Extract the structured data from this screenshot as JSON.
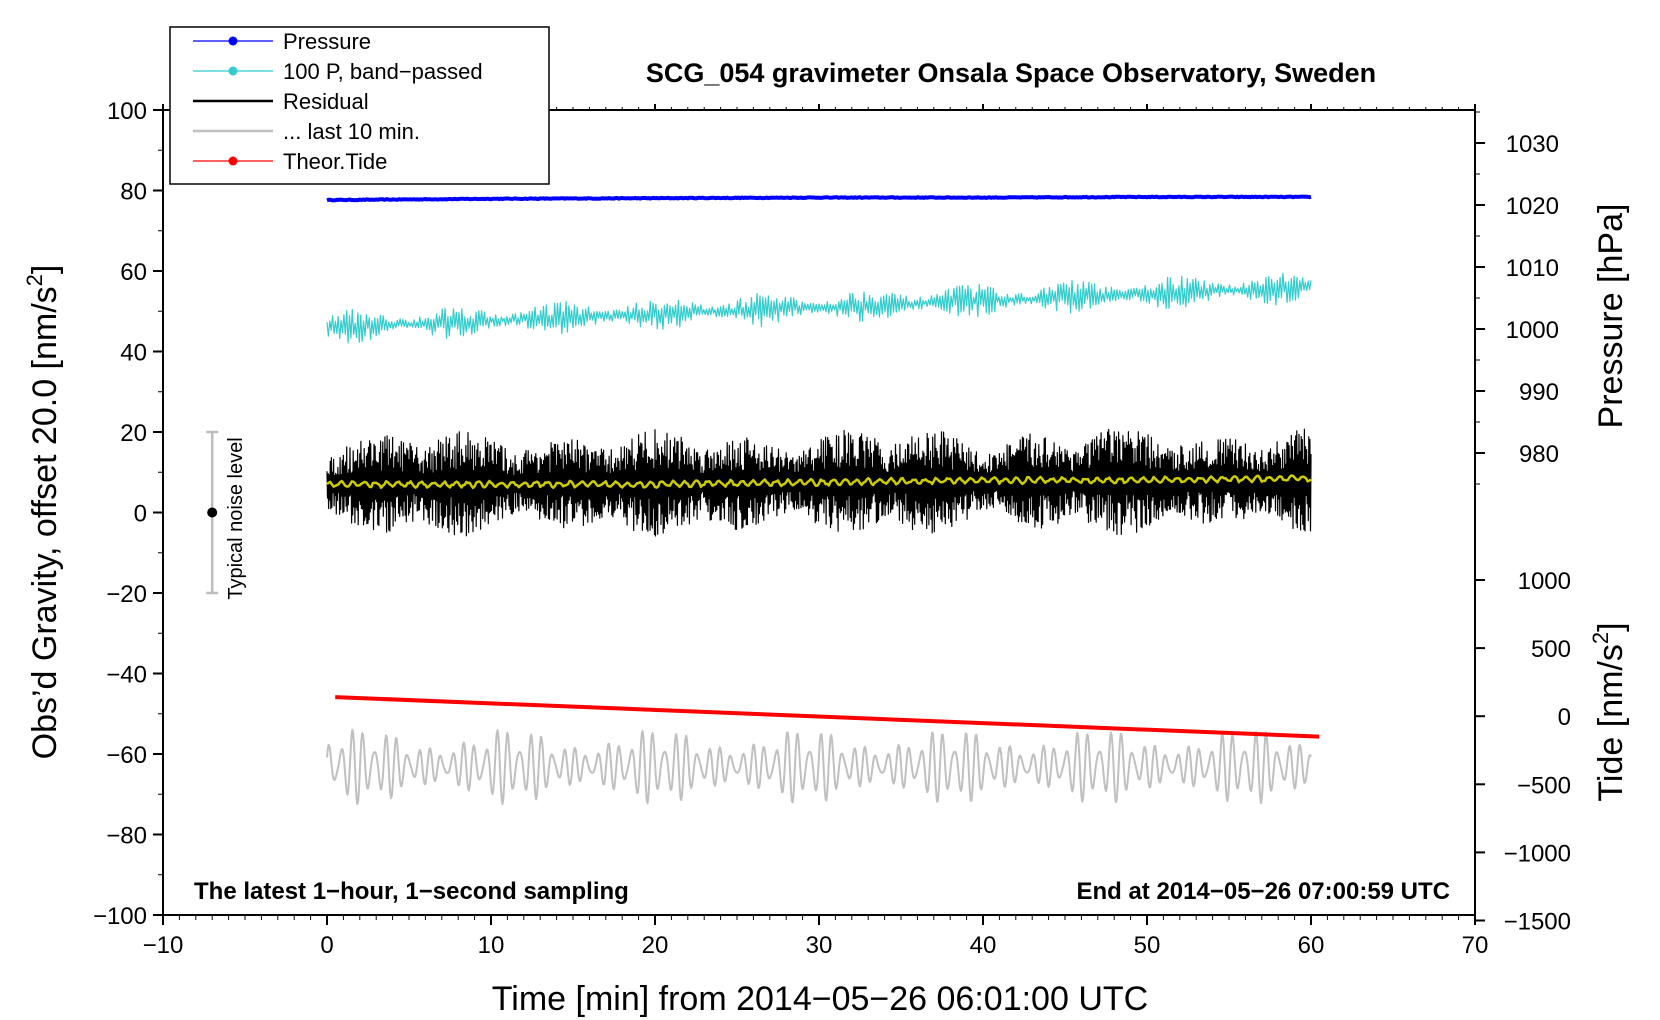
{
  "chart_data": {
    "type": "line",
    "title": "SCG_054 gravimeter Onsala Space Observatory, Sweden",
    "xlabel": "Time [min] from 2014−05−26 06:01:00 UTC",
    "ylabel_left_main": "Obs’d Gravity, offset 20.0 [nm/s",
    "ylabel_left_sup": "2",
    "ylabel_left_end": "]",
    "ylabel_right_top": "Pressure [hPa]",
    "ylabel_right_bottom_main": "Tide [nm/s",
    "ylabel_right_bottom_sup": "2",
    "ylabel_right_bottom_end": "]",
    "xlim": [
      -10,
      70
    ],
    "ylim_left": [
      -100,
      100
    ],
    "ylim_pressure": [
      970,
      1035
    ],
    "ylim_tide": [
      -1500,
      1000
    ],
    "x_ticks": [
      "−10",
      "0",
      "10",
      "20",
      "30",
      "40",
      "50",
      "60",
      "70"
    ],
    "x_tick_values": [
      -10,
      0,
      10,
      20,
      30,
      40,
      50,
      60,
      70
    ],
    "y_ticks_left": [
      "100",
      "80",
      "60",
      "40",
      "20",
      "0",
      "−20",
      "−40",
      "−60",
      "−80",
      "−100"
    ],
    "y_tick_values_left": [
      100,
      80,
      60,
      40,
      20,
      0,
      -20,
      -40,
      -60,
      -80,
      -100
    ],
    "pressure_ticks": [
      "1030",
      "1020",
      "1010",
      "1000",
      "990",
      "980"
    ],
    "pressure_tick_values": [
      1030,
      1020,
      1010,
      1000,
      990,
      980
    ],
    "tide_ticks": [
      "1000",
      "500",
      "0",
      "−500",
      "−1000",
      "−1500"
    ],
    "tide_tick_values": [
      1000,
      500,
      0,
      -500,
      -1000,
      -1500
    ],
    "legend": [
      {
        "label": "Pressure",
        "color": "#0000ff",
        "marker": "dot"
      },
      {
        "label": "100 P, band−passed",
        "color": "#33cccc",
        "marker": "dot"
      },
      {
        "label": "Residual",
        "color": "#000000",
        "marker": "line"
      },
      {
        "label": "... last 10 min.",
        "color": "#c0c0c0",
        "marker": "line"
      },
      {
        "label": "Theor.Tide",
        "color": "#ff0000",
        "marker": "dot"
      }
    ],
    "series": [
      {
        "name": "Pressure",
        "axis": "pressure",
        "color": "#0000ff",
        "x": [
          0,
          10,
          20,
          30,
          40,
          50,
          60
        ],
        "y": [
          1020.8,
          1021.0,
          1021.1,
          1021.2,
          1021.2,
          1021.3,
          1021.3
        ]
      },
      {
        "name": "100 P, band-passed",
        "axis": "left",
        "color": "#33cccc",
        "x_start": 0,
        "x_end": 60,
        "baseline": [
          46,
          56
        ],
        "amplitude": 3
      },
      {
        "name": "Residual",
        "axis": "left",
        "color": "#000000",
        "x_start": 0,
        "x_end": 60,
        "baseline": [
          7,
          8
        ],
        "amplitude": 8
      },
      {
        "name": "... last 10 min.",
        "axis": "left",
        "color": "#c0c0c0",
        "x_start": 0,
        "x_end": 60,
        "baseline": [
          -63,
          -63
        ],
        "amplitude": 8
      },
      {
        "name": "Residual smoothed",
        "axis": "left",
        "color": "#cccc00",
        "x": [
          0,
          10,
          20,
          30,
          40,
          50,
          60
        ],
        "y": [
          7,
          7,
          7,
          7.5,
          8,
          8,
          8.5
        ]
      },
      {
        "name": "Theor.Tide",
        "axis": "tide",
        "color": "#ff0000",
        "x": [
          0.5,
          60.5
        ],
        "y": [
          140,
          -150
        ]
      }
    ],
    "noise_bar": {
      "label": "Typical noise level",
      "x": -7,
      "center": 0,
      "low": -20,
      "high": 20
    },
    "annotation_left": "The latest 1−hour, 1−second sampling",
    "annotation_right": "End at 2014−05−26 07:00:59 UTC"
  }
}
